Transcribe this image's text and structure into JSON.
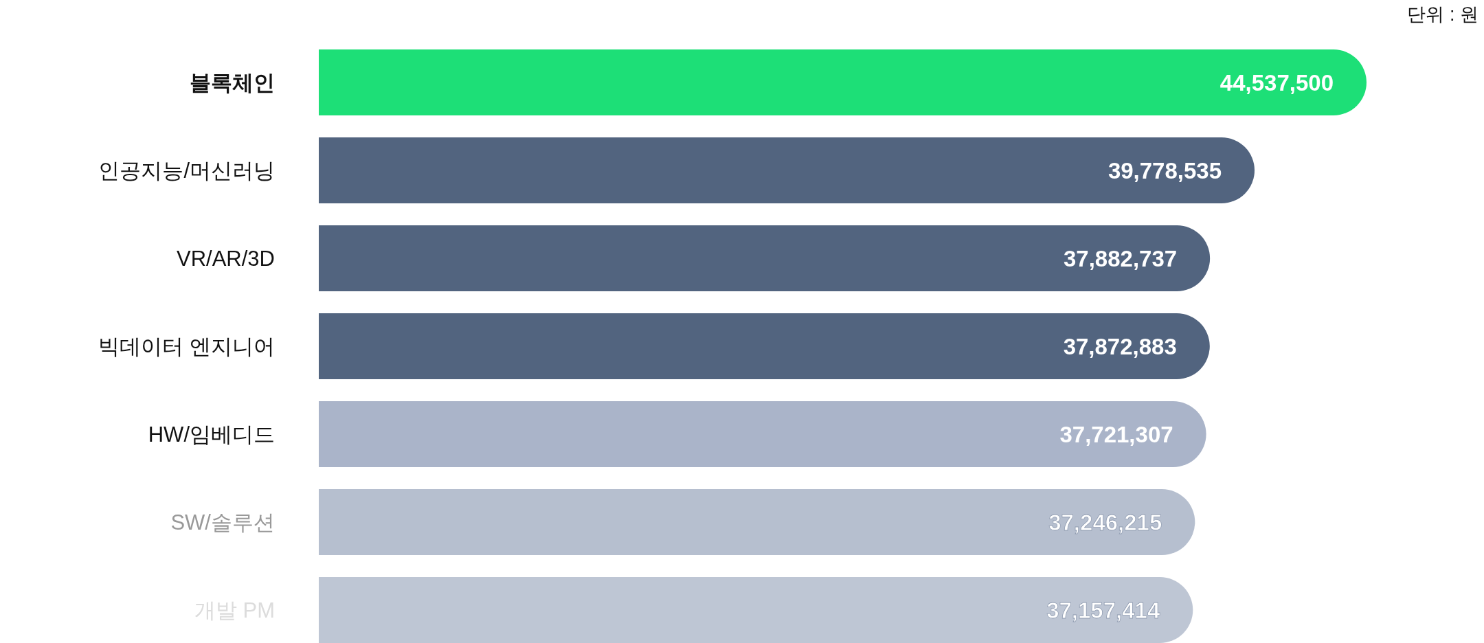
{
  "chart_data": {
    "type": "bar",
    "orientation": "horizontal",
    "categories": [
      "블록체인",
      "인공지능/머신러닝",
      "VR/AR/3D",
      "빅데이터 엔지니어",
      "HW/임베디드",
      "SW/솔루션",
      "개발 PM"
    ],
    "values": [
      44537500,
      39778535,
      37882737,
      37872883,
      37721307,
      37246215,
      37157414
    ],
    "colors": [
      "#1ddf77",
      "#52647f",
      "#52647f",
      "#52647f",
      "#aab4c9",
      "#b6bfcf",
      "#bec6d4"
    ],
    "value_labels": [
      "44,537,500",
      "39,778,535",
      "37,882,737",
      "37,872,883",
      "37,721,307",
      "37,246,215",
      "37,157,414"
    ],
    "annotations": [
      "단위 : 원"
    ]
  }
}
